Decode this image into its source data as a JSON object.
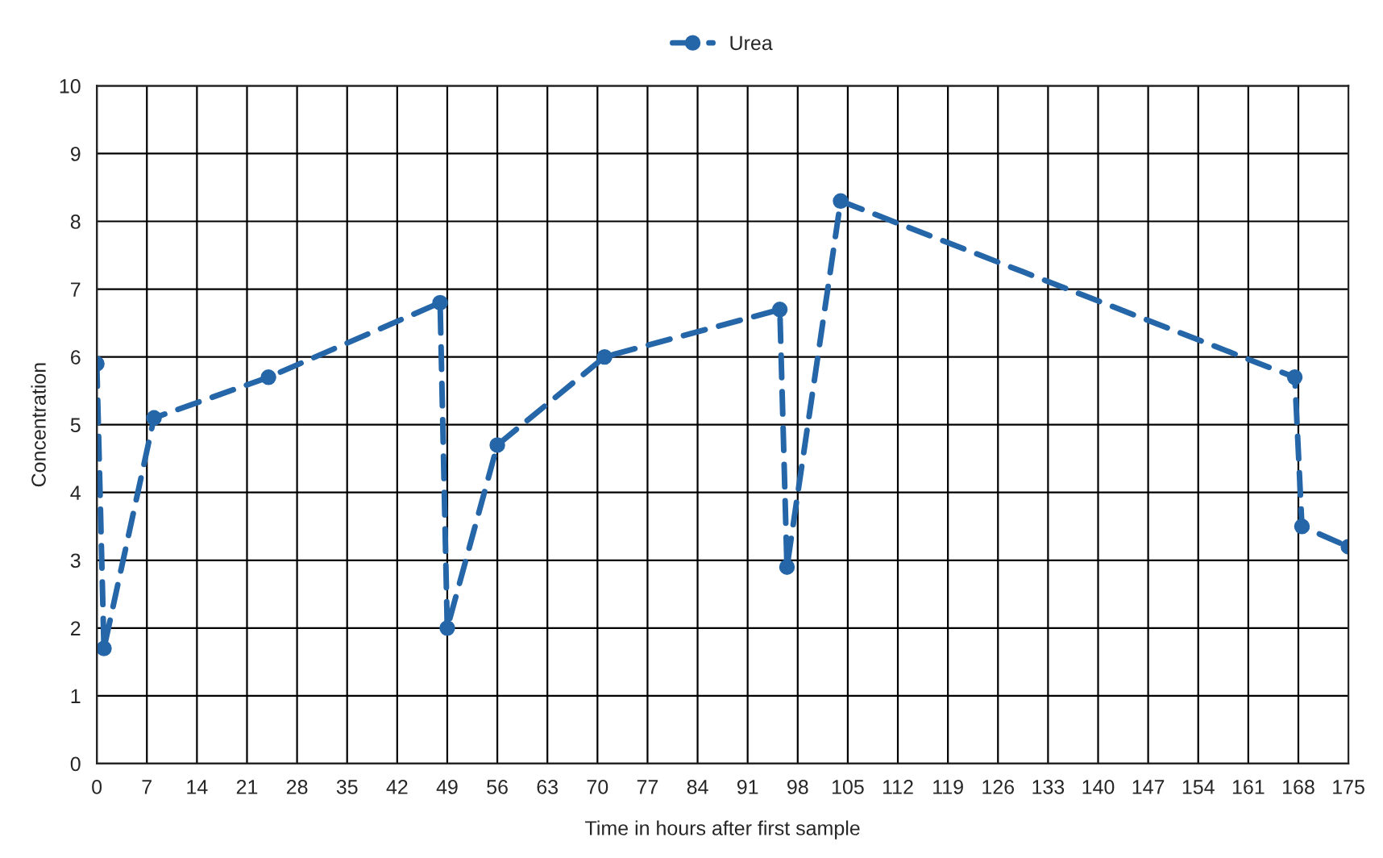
{
  "chart_data": {
    "type": "line",
    "xlabel": "Time in hours after first sample",
    "ylabel": "Concentration",
    "series": [
      {
        "name": "Urea",
        "color": "#2566a8",
        "x": [
          0,
          1,
          8,
          24,
          48,
          49,
          56,
          71,
          95.5,
          96.5,
          104,
          167.5,
          168.5,
          175
        ],
        "values": [
          5.9,
          1.7,
          5.1,
          5.7,
          6.8,
          2.0,
          4.7,
          6.0,
          6.7,
          2.9,
          8.3,
          5.7,
          3.5,
          3.2
        ]
      }
    ],
    "xlim": [
      0,
      175
    ],
    "xticks": [
      0,
      7,
      14,
      21,
      28,
      35,
      42,
      49,
      56,
      63,
      70,
      77,
      84,
      91,
      98,
      105,
      112,
      119,
      126,
      133,
      140,
      147,
      154,
      161,
      168,
      175
    ],
    "ylim": [
      0,
      10
    ],
    "yticks": [
      0,
      1,
      2,
      3,
      4,
      5,
      6,
      7,
      8,
      9,
      10
    ],
    "grid": true,
    "legend": "top",
    "marker": "circle",
    "line_style": "dashed"
  }
}
